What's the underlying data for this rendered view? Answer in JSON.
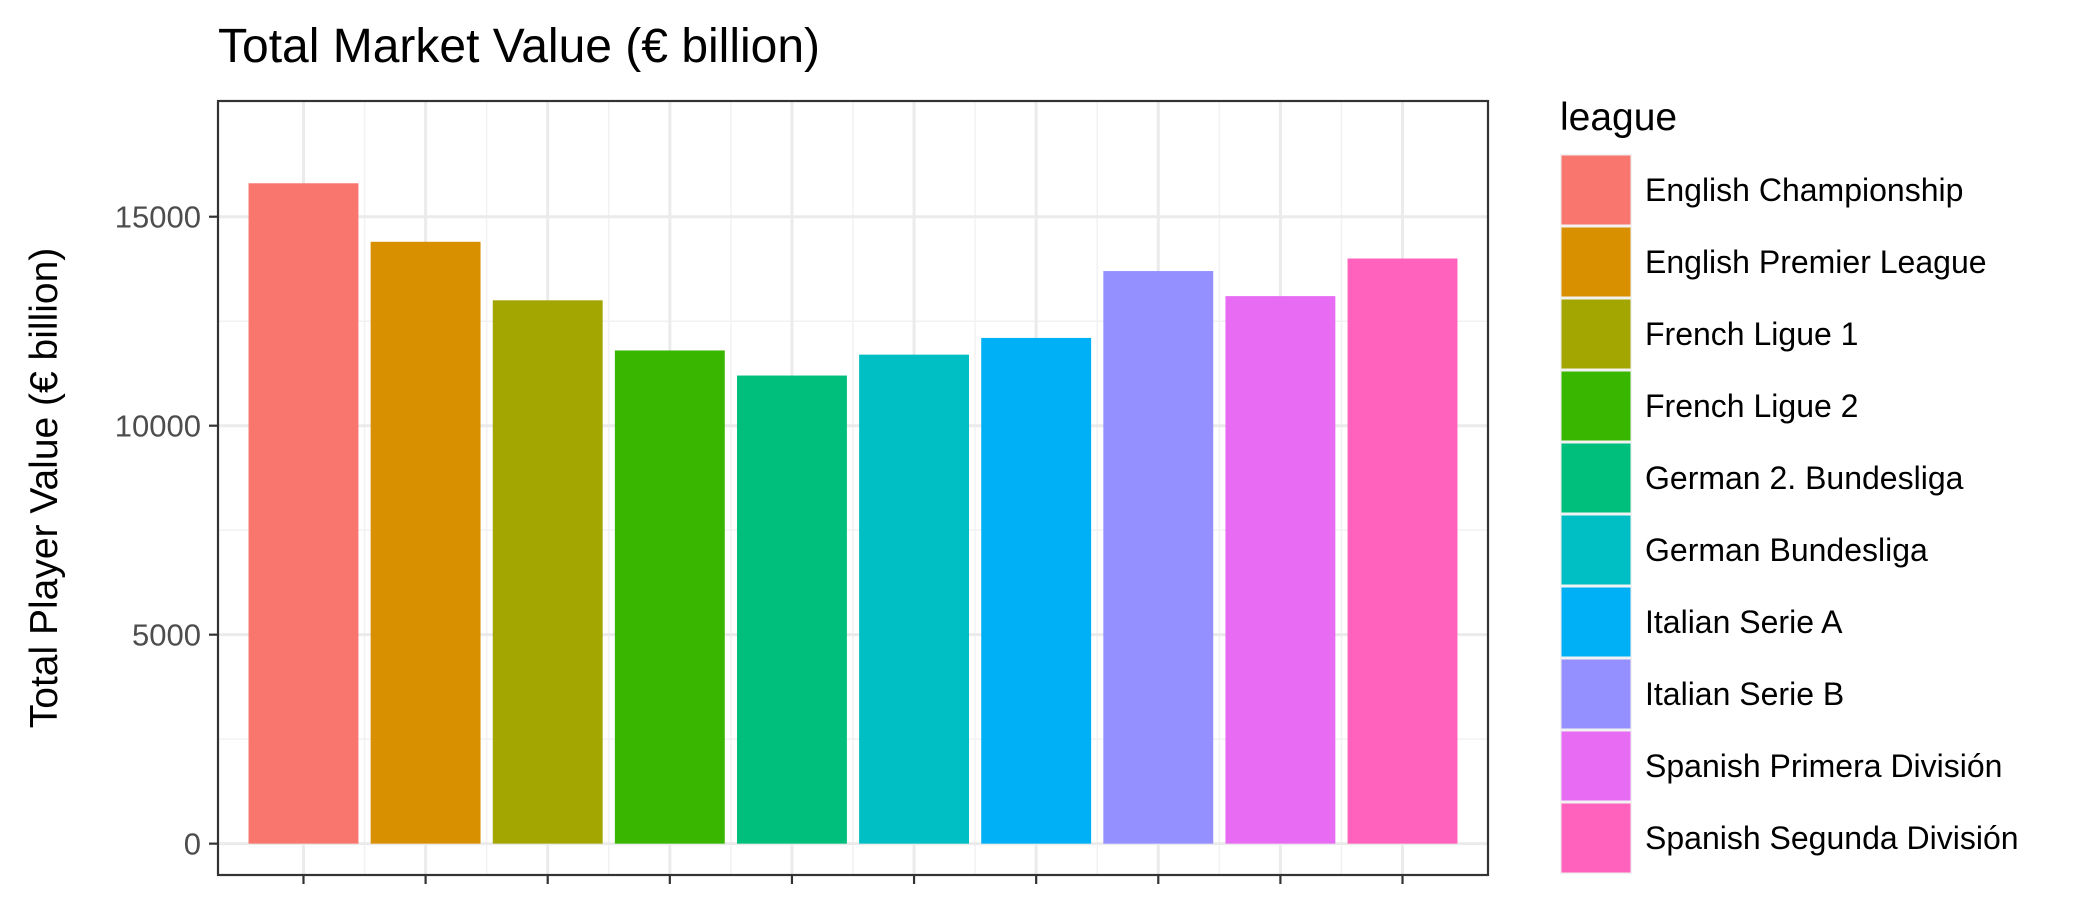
{
  "chart_data": {
    "type": "bar",
    "title": "Total Market Value (€ billion)",
    "xlabel": "",
    "ylabel": "Total Player Value (€ billion)",
    "ylim": [
      0,
      16500
    ],
    "yticks": [
      0,
      5000,
      10000,
      15000
    ],
    "grid": true,
    "legend_title": "league",
    "legend_position": "right",
    "categories": [
      "English Championship",
      "English Premier League",
      "French Ligue 1",
      "French Ligue 2",
      "German 2. Bundesliga",
      "German Bundesliga",
      "Italian Serie A",
      "Italian Serie B",
      "Spanish Primera División",
      "Spanish Segunda División"
    ],
    "values": [
      15800,
      14400,
      13000,
      11800,
      11200,
      11700,
      12100,
      13700,
      13100,
      14000
    ],
    "colors": [
      "#F8766D",
      "#D89000",
      "#A3A500",
      "#39B600",
      "#00BF7D",
      "#00BFC4",
      "#00B0F6",
      "#9590FF",
      "#E76BF3",
      "#FF62BC"
    ]
  }
}
